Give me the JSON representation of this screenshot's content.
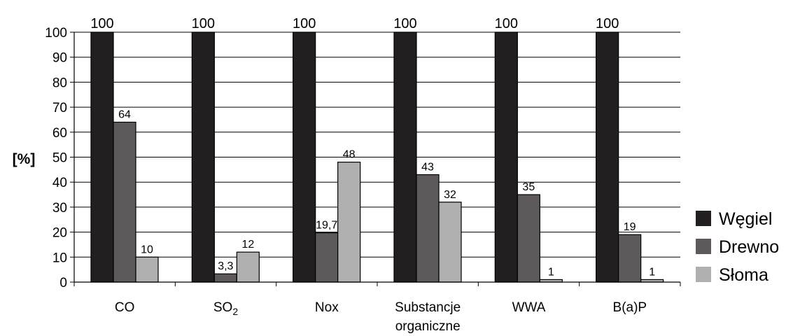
{
  "chart_data": {
    "type": "bar",
    "title": "",
    "xlabel": "",
    "ylabel": "[%]",
    "ylim": [
      0,
      100
    ],
    "yticks": [
      0,
      10,
      20,
      30,
      40,
      50,
      60,
      70,
      80,
      90,
      100
    ],
    "grid": true,
    "legend_position": "right",
    "categories": [
      {
        "label": "CO",
        "sub": ""
      },
      {
        "label": "SO",
        "sub": "2"
      },
      {
        "label": "Nox",
        "sub": ""
      },
      {
        "label": "Substancje organiczne",
        "sub": ""
      },
      {
        "label": "WWA",
        "sub": ""
      },
      {
        "label": "B(a)P",
        "sub": ""
      }
    ],
    "series": [
      {
        "name": "Węgiel",
        "color": "#231f20",
        "values": [
          100,
          100,
          100,
          100,
          100,
          100
        ],
        "labels": [
          "100",
          "100",
          "100",
          "100",
          "100",
          "100"
        ]
      },
      {
        "name": "Drewno",
        "color": "#5e5a5b",
        "values": [
          64,
          3.3,
          19.7,
          43,
          35,
          19
        ],
        "labels": [
          "64",
          "3,3",
          "19,7",
          "43",
          "35",
          "19"
        ]
      },
      {
        "name": "Słoma",
        "color": "#b0b0b0",
        "values": [
          10,
          12,
          48,
          32,
          1,
          1
        ],
        "labels": [
          "10",
          "12",
          "48",
          "32",
          "1",
          "1"
        ]
      }
    ]
  }
}
